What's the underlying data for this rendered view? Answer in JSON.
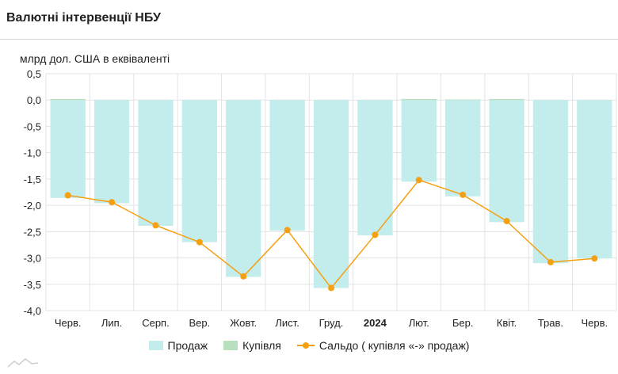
{
  "title": "Валютні інтервенції НБУ",
  "colors": {
    "sales": "#c3ecec",
    "purchases": "#b8e0bf",
    "balance": "#f5a012",
    "grid": "#e3e3e3"
  },
  "chart_data": {
    "type": "bar",
    "ylabel": "млрд дол. США в еквіваленті",
    "ylim": [
      -4.0,
      0.5
    ],
    "yticks": [
      "0,5",
      "0,0",
      "-0,5",
      "-1,0",
      "-1,5",
      "-2,0",
      "-2,5",
      "-3,0",
      "-3,5",
      "-4,0"
    ],
    "grid": true,
    "legend_position": "bottom",
    "categories": [
      "Черв.",
      "Лип.",
      "Серп.",
      "Вер.",
      "Жовт.",
      "Лист.",
      "Груд.",
      "2024",
      "Лют.",
      "Бер.",
      "Квіт.",
      "Трав.",
      "Черв."
    ],
    "bold_categories": [
      "2024"
    ],
    "series": [
      {
        "name": "Продаж",
        "kind": "bar",
        "values": [
          -1.86,
          -1.96,
          -2.39,
          -2.7,
          -3.36,
          -2.48,
          -3.57,
          -2.57,
          -1.55,
          -1.83,
          -2.32,
          -3.1,
          -3.01
        ]
      },
      {
        "name": "Купівля",
        "kind": "bar",
        "values": [
          0.02,
          0.0,
          0.0,
          0.0,
          0.0,
          0.0,
          0.0,
          0.0,
          0.02,
          0.01,
          0.02,
          0.0,
          0.0
        ]
      },
      {
        "name": "Сальдо ( купівля «-» продаж)",
        "kind": "line",
        "values": [
          -1.81,
          -1.94,
          -2.38,
          -2.7,
          -3.35,
          -2.47,
          -3.57,
          -2.56,
          -1.52,
          -1.8,
          -2.3,
          -3.08,
          -3.01
        ]
      }
    ]
  }
}
